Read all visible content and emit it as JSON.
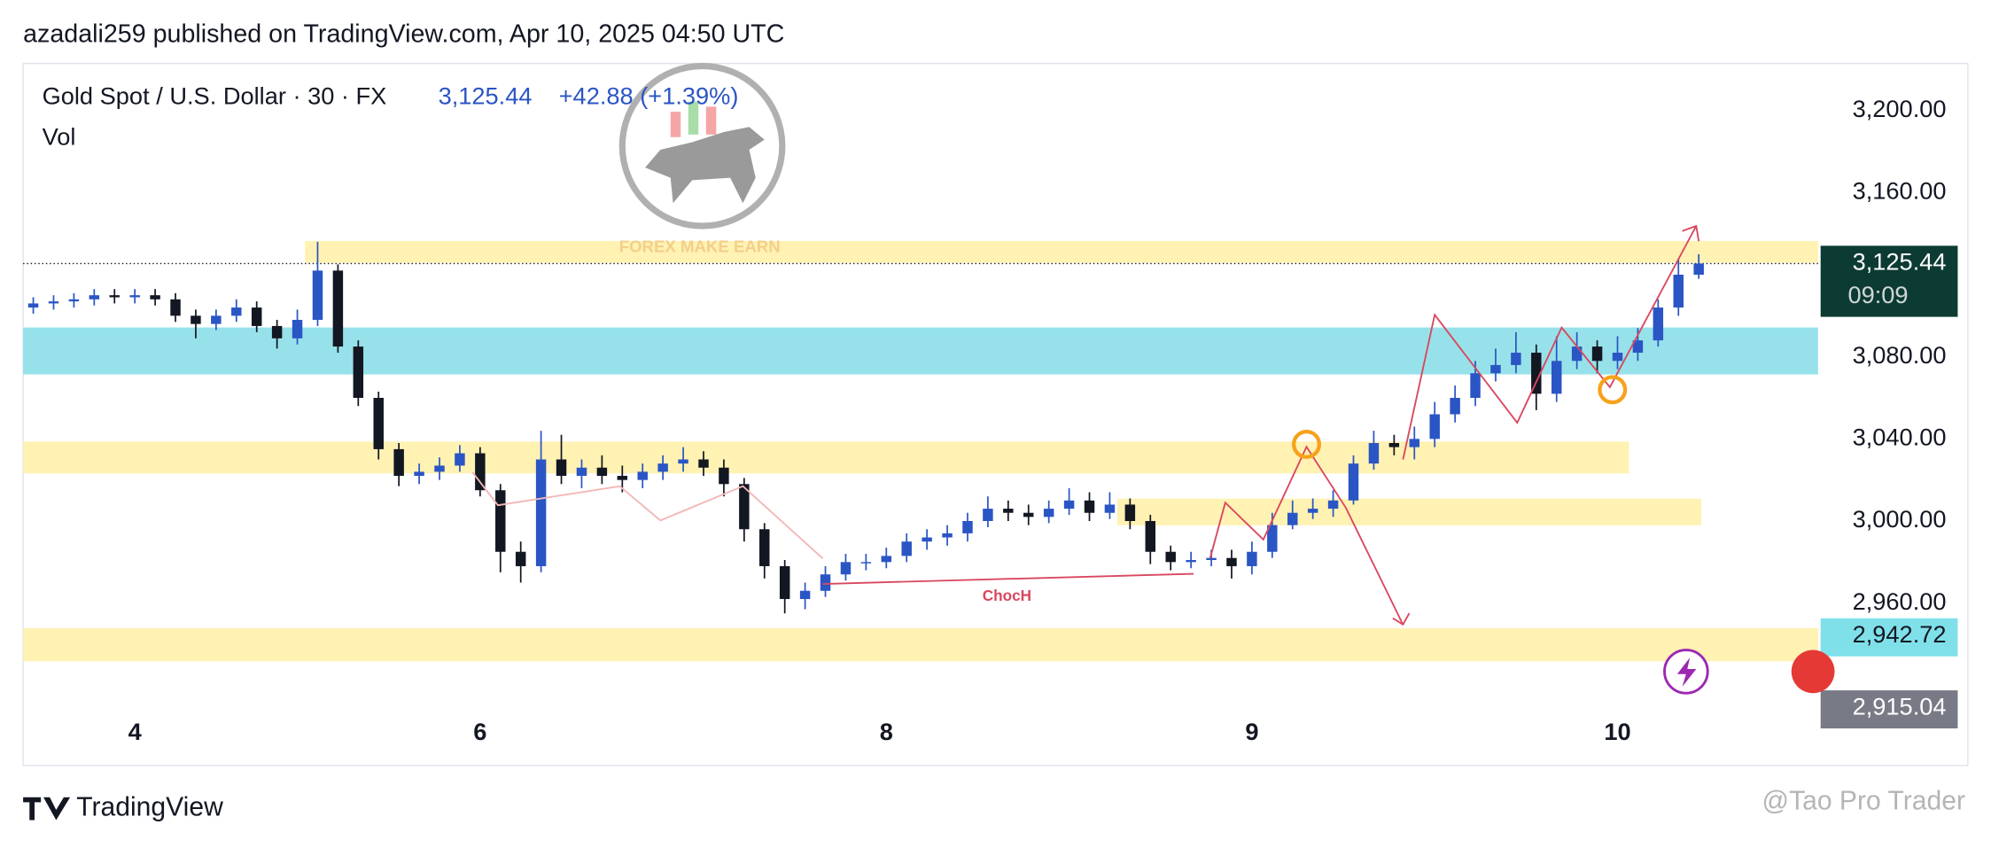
{
  "header": {
    "text": "azadali259 published on TradingView.com, Apr 10, 2025 04:50 UTC"
  },
  "chart_data": {
    "type": "candlestick",
    "title": "Gold Spot / U.S. Dollar · 30 · FX",
    "last_price_text": "3,125.44",
    "change_text": "+42.88 (+1.39%)",
    "volume_label": "Vol",
    "watermark": "FOREX MAKE EARN",
    "annotation": "ChocH",
    "categories": [
      null,
      null,
      null,
      null,
      null,
      "4",
      null,
      null,
      null,
      null,
      null,
      null,
      null,
      null,
      null,
      null,
      null,
      null,
      null,
      null,
      null,
      null,
      "6",
      null,
      null,
      null,
      null,
      null,
      null,
      null,
      null,
      null,
      null,
      null,
      null,
      null,
      null,
      null,
      null,
      null,
      null,
      null,
      "8",
      null,
      null,
      null,
      null,
      null,
      null,
      null,
      null,
      null,
      null,
      null,
      null,
      null,
      null,
      null,
      null,
      null,
      "9",
      null,
      null,
      null,
      null,
      null,
      null,
      null,
      null,
      null,
      null,
      null,
      null,
      null,
      null,
      null,
      null,
      null,
      "10",
      null,
      null,
      null,
      null
    ],
    "open": [
      3104,
      3106,
      3107,
      3108,
      3110,
      3109,
      3110,
      3108,
      3100,
      3096,
      3100,
      3104,
      3095,
      3089,
      3098,
      3122,
      3085,
      3060,
      3035,
      3022,
      3024,
      3027,
      3033,
      3015,
      2985,
      2978,
      3030,
      3022,
      3026,
      3022,
      3020,
      3024,
      3028,
      3030,
      3026,
      3018,
      2996,
      2978,
      2962,
      2966,
      2974,
      2980,
      2980,
      2983,
      2990,
      2992,
      2994,
      3000,
      3006,
      3004,
      3002,
      3006,
      3010,
      3004,
      3008,
      3000,
      2985,
      2980,
      2981,
      2982,
      2978,
      2985,
      2998,
      3004,
      3006,
      3010,
      3028,
      3038,
      3036,
      3040,
      3052,
      3060,
      3072,
      3076,
      3082,
      3062,
      3078,
      3085,
      3078,
      3082,
      3088,
      3104,
      3120
    ],
    "high": [
      3109,
      3110,
      3111,
      3113,
      3113,
      3113,
      3113,
      3111,
      3103,
      3103,
      3108,
      3107,
      3098,
      3103,
      3136,
      3125,
      3088,
      3063,
      3038,
      3028,
      3031,
      3037,
      3036,
      3018,
      2990,
      3044,
      3042,
      3030,
      3032,
      3027,
      3028,
      3032,
      3036,
      3034,
      3030,
      3021,
      2999,
      2981,
      2970,
      2978,
      2984,
      2984,
      2987,
      2994,
      2996,
      2998,
      3004,
      3012,
      3010,
      3008,
      3010,
      3016,
      3014,
      3014,
      3011,
      3003,
      2988,
      2985,
      2986,
      2986,
      2990,
      3004,
      3010,
      3011,
      3015,
      3032,
      3044,
      3042,
      3046,
      3058,
      3066,
      3078,
      3084,
      3092,
      3086,
      3090,
      3092,
      3088,
      3090,
      3094,
      3108,
      3128,
      3130
    ],
    "low": [
      3101,
      3103,
      3104,
      3105,
      3106,
      3106,
      3105,
      3097,
      3089,
      3093,
      3097,
      3092,
      3084,
      3086,
      3095,
      3082,
      3056,
      3030,
      3017,
      3018,
      3020,
      3024,
      3012,
      2975,
      2970,
      2975,
      3018,
      3016,
      3018,
      3014,
      3016,
      3020,
      3024,
      3022,
      3012,
      2990,
      2972,
      2955,
      2957,
      2963,
      2971,
      2976,
      2977,
      2980,
      2986,
      2988,
      2990,
      2997,
      3000,
      2998,
      2999,
      3003,
      3000,
      3001,
      2996,
      2979,
      2976,
      2977,
      2978,
      2972,
      2974,
      2982,
      2996,
      3001,
      3002,
      3008,
      3025,
      3032,
      3030,
      3036,
      3048,
      3056,
      3068,
      3072,
      3054,
      3058,
      3074,
      3072,
      3074,
      3078,
      3085,
      3100,
      3118
    ],
    "close": [
      3106,
      3107,
      3108,
      3110,
      3109,
      3110,
      3108,
      3100,
      3096,
      3100,
      3104,
      3095,
      3089,
      3098,
      3122,
      3085,
      3060,
      3035,
      3022,
      3024,
      3027,
      3033,
      3015,
      2985,
      2978,
      3030,
      3022,
      3026,
      3022,
      3020,
      3024,
      3028,
      3030,
      3026,
      3018,
      2996,
      2978,
      2962,
      2966,
      2974,
      2980,
      2980,
      2983,
      2990,
      2992,
      2994,
      3000,
      3006,
      3004,
      3002,
      3006,
      3010,
      3004,
      3008,
      3000,
      2985,
      2980,
      2981,
      2982,
      2978,
      2985,
      2998,
      3004,
      3006,
      3010,
      3028,
      3038,
      3036,
      3040,
      3052,
      3060,
      3072,
      3076,
      3082,
      3062,
      3078,
      3085,
      3078,
      3082,
      3088,
      3104,
      3120,
      3125.44
    ],
    "up_color": "#2a55c4",
    "down_color": "#131722",
    "ylim": [
      2907.5,
      3222.9
    ],
    "yticks": [
      {
        "value": 2960,
        "label": "2,960.00"
      },
      {
        "value": 3000,
        "label": "3,000.00"
      },
      {
        "value": 3040,
        "label": "3,040.00"
      },
      {
        "value": 3080,
        "label": "3,080.00"
      },
      {
        "value": 3160,
        "label": "3,160.00"
      },
      {
        "value": 3200,
        "label": "3,200.00"
      }
    ],
    "price_labels": [
      {
        "value": 3125.44,
        "label": "3,125.44",
        "sub": "09:09",
        "color": "#0c3b33"
      },
      {
        "value": 2942.72,
        "label": "2,942.72",
        "color": "#7fe0ea"
      },
      {
        "value": 2915.04,
        "label": "2,915.04",
        "color": "#787b86"
      }
    ],
    "zones": [
      {
        "low": 3125.8,
        "high": 3136.4,
        "color": "#fff2b3"
      },
      {
        "low": 3071.4,
        "high": 3094.3,
        "color": "#97e2ea"
      },
      {
        "low": 3023.2,
        "high": 3038.7,
        "color": "#fff2b3"
      },
      {
        "low": 2997.9,
        "high": 3010.9,
        "color": "#fff2b3"
      },
      {
        "low": 2931.7,
        "high": 2947.8,
        "color": "#fff2b3"
      }
    ]
  },
  "footer": {
    "brand": "TradingView",
    "credit": "@Tao Pro Trader"
  }
}
